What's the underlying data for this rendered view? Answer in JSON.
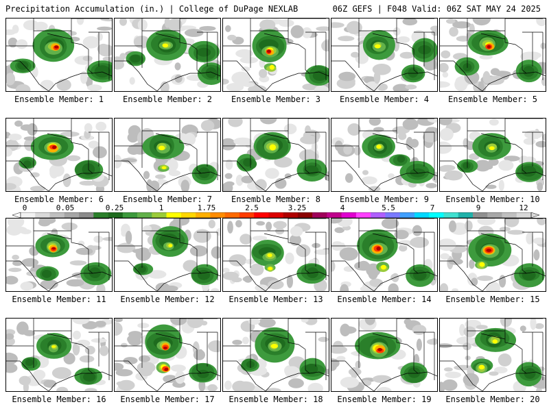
{
  "header": {
    "title_left": "Precipitation Accumulation (in.) | College of DuPage NEXLAB",
    "title_right": "06Z GEFS | F048 Valid: 06Z SAT MAY 24 2025"
  },
  "members": [
    {
      "label": "Ensemble Member: 1"
    },
    {
      "label": "Ensemble Member: 2"
    },
    {
      "label": "Ensemble Member: 3"
    },
    {
      "label": "Ensemble Member: 4"
    },
    {
      "label": "Ensemble Member: 5"
    },
    {
      "label": "Ensemble Member: 6"
    },
    {
      "label": "Ensemble Member: 7"
    },
    {
      "label": "Ensemble Member: 8"
    },
    {
      "label": "Ensemble Member: 9"
    },
    {
      "label": "Ensemble Member: 10"
    },
    {
      "label": "Ensemble Member: 11"
    },
    {
      "label": "Ensemble Member: 12"
    },
    {
      "label": "Ensemble Member: 13"
    },
    {
      "label": "Ensemble Member: 14"
    },
    {
      "label": "Ensemble Member: 15"
    },
    {
      "label": "Ensemble Member: 16"
    },
    {
      "label": "Ensemble Member: 17"
    },
    {
      "label": "Ensemble Member: 18"
    },
    {
      "label": "Ensemble Member: 19"
    },
    {
      "label": "Ensemble Member: 20"
    }
  ],
  "colorbar": {
    "tick_labels": [
      "0",
      "0.05",
      "0.25",
      "1",
      "1.75",
      "2.5",
      "3.25",
      "4",
      "5.5",
      "7",
      "9",
      "12"
    ],
    "colors": [
      "#f2f2f2",
      "#d9d9d9",
      "#bfbfbf",
      "#a6a6a6",
      "#8c8c8c",
      "#2a7f2a",
      "#1e6b1e",
      "#3d9a3d",
      "#62b14a",
      "#9ccc3a",
      "#ffff00",
      "#ffd700",
      "#ffb000",
      "#ff8c00",
      "#ff6a00",
      "#ff3c00",
      "#ff0000",
      "#dc0000",
      "#b00000",
      "#8b0000",
      "#a0005a",
      "#c0008c",
      "#e000d0",
      "#ff40ff",
      "#b060ff",
      "#7a7aff",
      "#40a0ff",
      "#00d8ff",
      "#00ffff",
      "#40e0d0",
      "#20b2aa",
      "#909090",
      "#a8a8a8",
      "#c0c0c0",
      "#d8d8d8"
    ]
  }
}
